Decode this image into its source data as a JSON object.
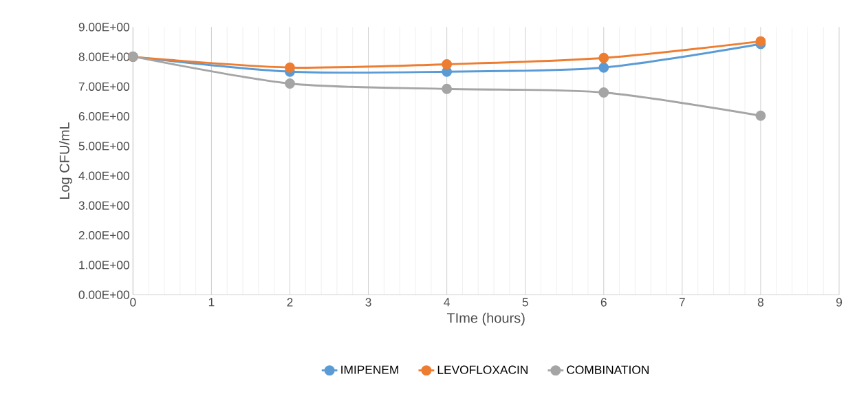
{
  "chart_data": {
    "type": "line",
    "xlabel": "TIme (hours)",
    "ylabel": "Log CFU/mL",
    "x": [
      0,
      2,
      4,
      6,
      8
    ],
    "series": [
      {
        "name": "IMIPENEM",
        "color": "#5b9bd5",
        "values": [
          8.0,
          7.5,
          7.5,
          7.64,
          8.43
        ]
      },
      {
        "name": "LEVOFLOXACIN",
        "color": "#ed7d31",
        "values": [
          8.0,
          7.64,
          7.75,
          7.96,
          8.52
        ]
      },
      {
        "name": "COMBINATION",
        "color": "#a5a5a5",
        "values": [
          8.01,
          7.1,
          6.92,
          6.8,
          6.02
        ]
      }
    ],
    "xlim": [
      0,
      9
    ],
    "xticks": [
      0,
      1,
      2,
      3,
      4,
      5,
      6,
      7,
      8,
      9
    ],
    "ylim": [
      0,
      9
    ],
    "yticks": [
      {
        "value": 0,
        "label": "0.00E+00"
      },
      {
        "value": 1,
        "label": "1.00E+00"
      },
      {
        "value": 2,
        "label": "2.00E+00"
      },
      {
        "value": 3,
        "label": "3.00E+00"
      },
      {
        "value": 4,
        "label": "4.00E+00"
      },
      {
        "value": 5,
        "label": "5.00E+00"
      },
      {
        "value": 6,
        "label": "6.00E+00"
      },
      {
        "value": 7,
        "label": "7.00E+00"
      },
      {
        "value": 8,
        "label": "8.00E+00"
      },
      {
        "value": 9,
        "label": "9.00E+00"
      }
    ],
    "grid": "x",
    "legend": "bottom",
    "marker": "circle",
    "line_style": "solid"
  }
}
